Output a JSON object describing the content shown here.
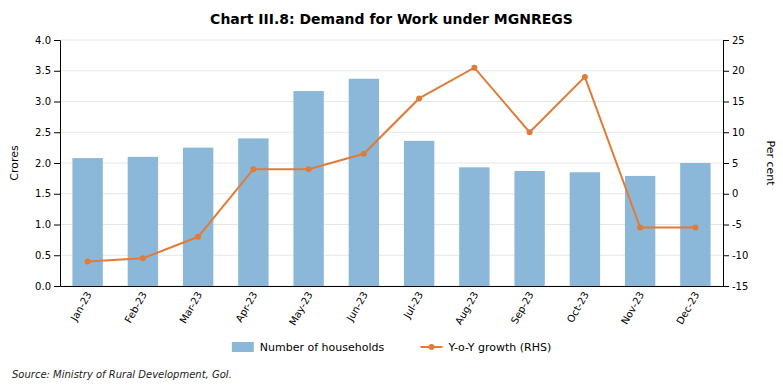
{
  "chart_data": {
    "type": "bar",
    "title": "Chart III.8: Demand for Work under MGNREGS",
    "categories": [
      "Jan-23",
      "Feb-23",
      "Mar-23",
      "Apr-23",
      "May-23",
      "Jun-23",
      "Jul-23",
      "Aug-23",
      "Sep-23",
      "Oct-23",
      "Nov-23",
      "Dec-23"
    ],
    "series": [
      {
        "name": "Number of households",
        "type": "bar",
        "color": "#8BB8D8",
        "values": [
          2.08,
          2.1,
          2.25,
          2.4,
          3.17,
          3.37,
          2.36,
          1.93,
          1.87,
          1.85,
          1.79,
          2.0
        ]
      },
      {
        "name": "Y-o-Y growth (RHS)",
        "type": "line",
        "color": "#E07B39",
        "marker": "circle",
        "axis": "y2",
        "values": [
          -11.0,
          -10.5,
          -7.0,
          4.0,
          4.0,
          6.5,
          15.5,
          20.5,
          10.0,
          19.0,
          -5.5,
          -5.5
        ]
      }
    ],
    "ylabel": "Crores",
    "y2label": "Per cent",
    "ylim": [
      0.0,
      4.0
    ],
    "yticks": [
      {
        "value": 0.0,
        "label": "0.0"
      },
      0.5,
      {
        "value": 1.0,
        "label": "1.0"
      },
      1.5,
      {
        "value": 2.0,
        "label": "2.0"
      },
      2.5,
      {
        "value": 3.0,
        "label": "3.0"
      },
      3.5,
      {
        "value": 4.0,
        "label": "4.0"
      }
    ],
    "y2lim": [
      -15.0,
      25.0
    ],
    "y2ticks": [
      -15,
      -10,
      -5,
      0,
      5,
      10,
      15,
      20,
      25
    ],
    "grid": true,
    "legend": "bottom",
    "source": "Source: Ministry of Rural Development, GoI."
  }
}
